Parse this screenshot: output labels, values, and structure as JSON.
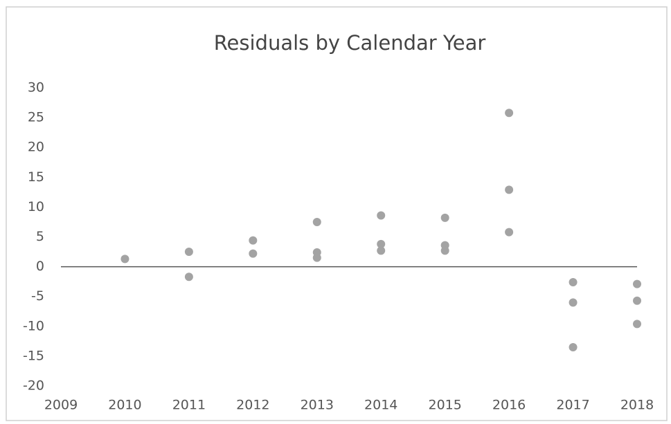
{
  "chart_data": {
    "type": "scatter",
    "title": "Residuals by Calendar Year",
    "x": [
      2010,
      2011,
      2011,
      2012,
      2012,
      2013,
      2013,
      2013,
      2014,
      2014,
      2014,
      2015,
      2015,
      2015,
      2016,
      2016,
      2016,
      2017,
      2017,
      2017,
      2018,
      2018,
      2018
    ],
    "values": [
      1.3,
      2.5,
      -1.7,
      4.4,
      2.2,
      7.5,
      2.4,
      1.5,
      8.6,
      3.8,
      2.7,
      8.2,
      3.6,
      2.7,
      25.8,
      12.9,
      5.8,
      -2.6,
      -6.0,
      -13.5,
      -2.9,
      -5.7,
      -9.6
    ],
    "color": "#a3a3a3",
    "xlim": [
      2009,
      2018
    ],
    "xticks": [
      2009,
      2010,
      2011,
      2012,
      2013,
      2014,
      2015,
      2016,
      2017,
      2018
    ],
    "ylim": [
      -20,
      30
    ],
    "yticks": [
      -20,
      -15,
      -10,
      -5,
      0,
      5,
      10,
      15,
      20,
      25,
      30
    ],
    "grid": false
  }
}
